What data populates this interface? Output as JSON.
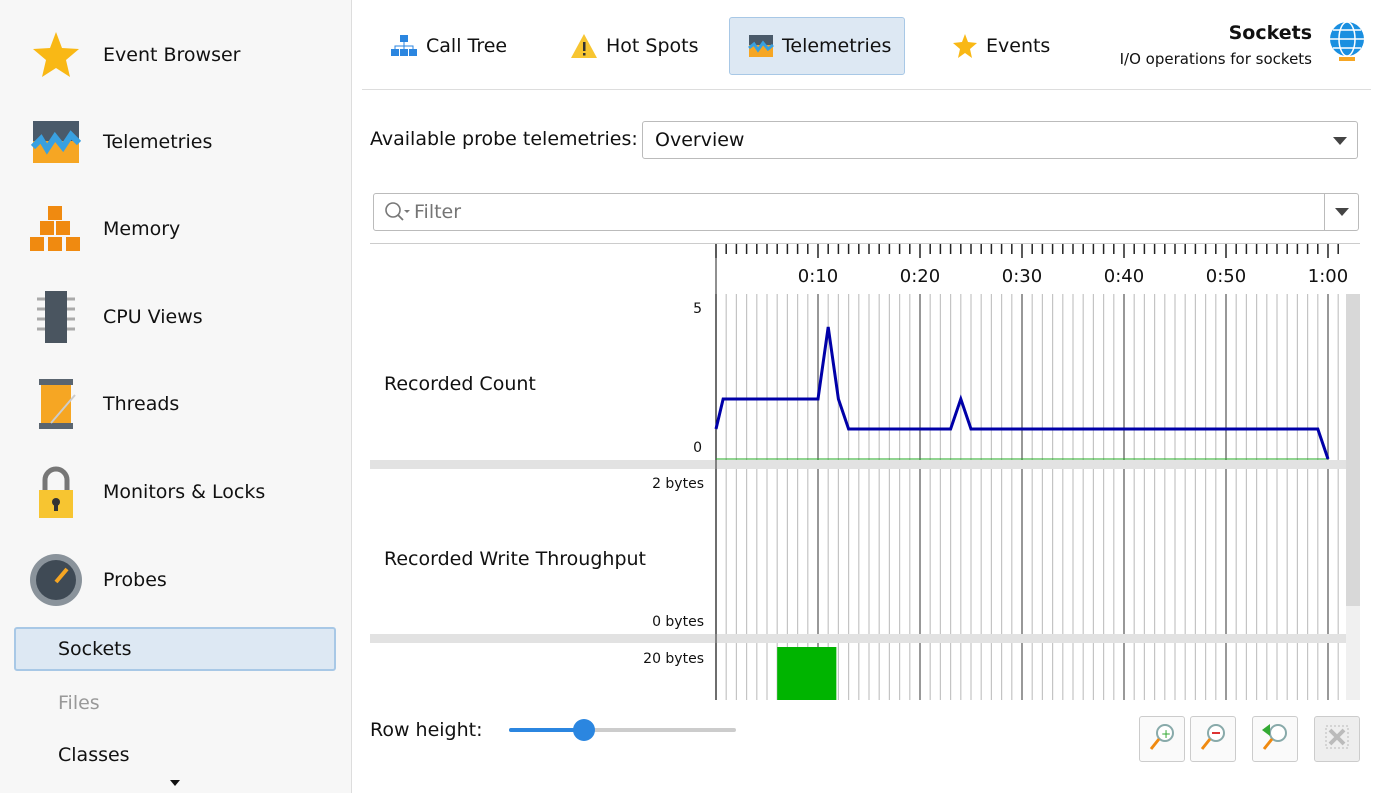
{
  "sidebar": {
    "items": [
      {
        "label": "Event Browser",
        "icon": "star-icon"
      },
      {
        "label": "Telemetries",
        "icon": "telemetries-icon"
      },
      {
        "label": "Memory",
        "icon": "memory-blocks-icon"
      },
      {
        "label": "CPU Views",
        "icon": "cpu-chip-icon"
      },
      {
        "label": "Threads",
        "icon": "thread-spool-icon"
      },
      {
        "label": "Monitors & Locks",
        "icon": "padlock-icon"
      },
      {
        "label": "Probes",
        "icon": "gauge-icon"
      }
    ],
    "subitems": [
      {
        "label": "Sockets",
        "selected": true
      },
      {
        "label": "Files",
        "disabled": true
      },
      {
        "label": "Classes"
      }
    ]
  },
  "tabs": [
    {
      "label": "Call Tree",
      "icon": "hierarchy-icon"
    },
    {
      "label": "Hot Spots",
      "icon": "warning-icon"
    },
    {
      "label": "Telemetries",
      "icon": "telemetries-icon",
      "selected": true
    },
    {
      "label": "Events",
      "icon": "star-icon"
    }
  ],
  "header": {
    "title": "Sockets",
    "subtitle": "I/O operations for sockets",
    "icon": "globe-icon"
  },
  "probe_select": {
    "label": "Available probe telemetries:",
    "value": "Overview"
  },
  "filter": {
    "placeholder": "Filter"
  },
  "row_height": {
    "label": "Row height:",
    "value": 0.33
  },
  "colors": {
    "accent": "#2b86e0",
    "line": "#0000a8",
    "bar": "#00b400",
    "selection": "#dde8f3"
  },
  "chart_data": [
    {
      "type": "line",
      "name": "Recorded Count",
      "x_ticks": [
        "0:10",
        "0:20",
        "0:30",
        "0:40",
        "0:50",
        "1:00"
      ],
      "ylim": [
        0,
        5
      ],
      "y_ticks": [
        "0",
        "5"
      ],
      "x": [
        0,
        0.7,
        10,
        11,
        12,
        13,
        23,
        24,
        25,
        59,
        60
      ],
      "y": [
        1,
        2,
        2,
        4.4,
        2,
        1,
        1,
        2,
        1,
        1,
        0
      ]
    },
    {
      "type": "line",
      "name": "Recorded Write Throughput",
      "y_ticks": [
        "0 bytes",
        "2 bytes"
      ],
      "x": [],
      "y": []
    },
    {
      "type": "bar",
      "name": "",
      "y_ticks": [
        "20 bytes"
      ],
      "bars": [
        {
          "start": 6,
          "end": 11.8,
          "value": 20
        }
      ]
    }
  ]
}
